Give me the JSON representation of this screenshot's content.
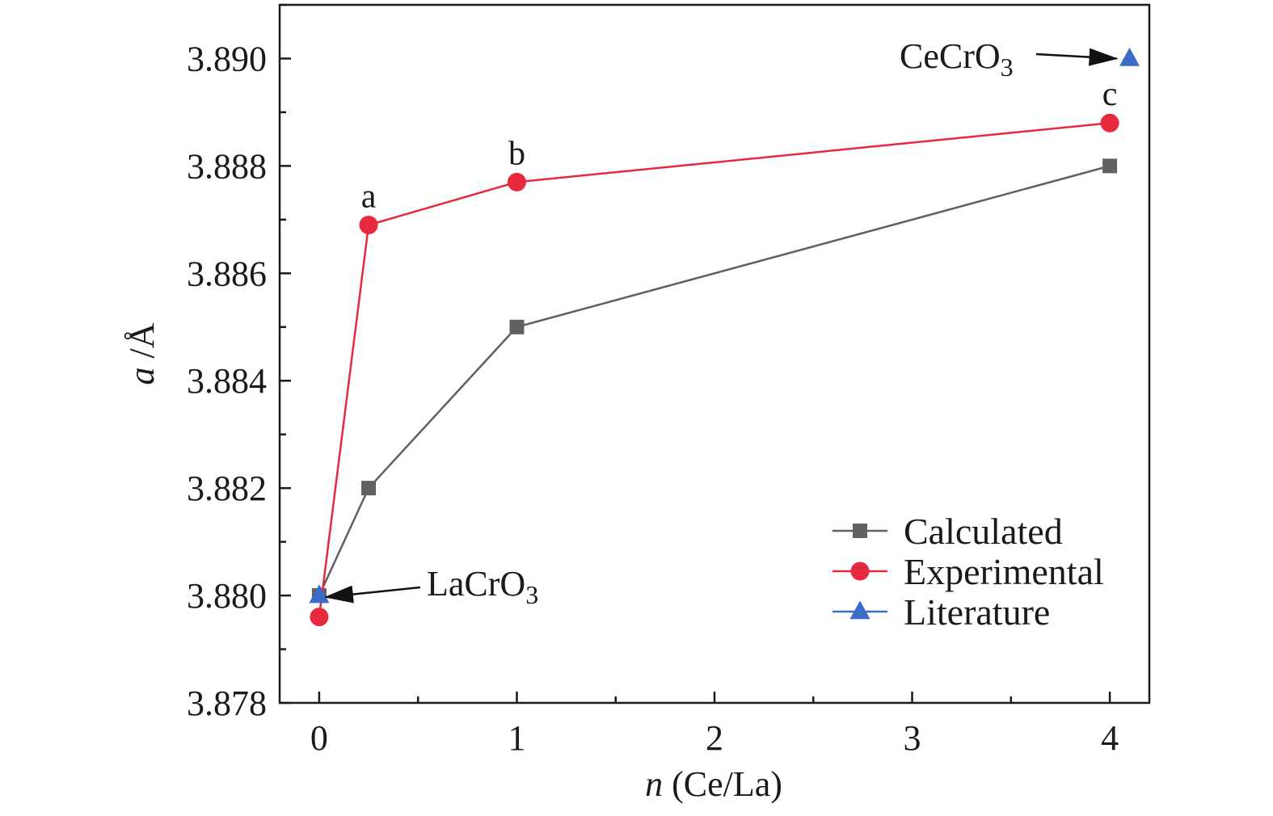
{
  "chart_data": {
    "type": "line",
    "xlabel_italic": "n",
    "xlabel_rest": " (Ce/La)",
    "ylabel_italic": "a",
    "ylabel_rest": " /Å",
    "xlim": [
      -0.2,
      4.2
    ],
    "ylim": [
      3.878,
      3.891
    ],
    "x_ticks": [
      0,
      1,
      2,
      3,
      4
    ],
    "x_tick_labels": [
      "0",
      "1",
      "2",
      "3",
      "4"
    ],
    "y_ticks": [
      3.878,
      3.88,
      3.882,
      3.884,
      3.886,
      3.888,
      3.89
    ],
    "y_tick_labels": [
      "3.878",
      "3.880",
      "3.882",
      "3.884",
      "3.886",
      "3.888",
      "3.890"
    ],
    "grid": false,
    "legend_position": "bottom-right",
    "series": [
      {
        "name": "Calculated",
        "marker": "square",
        "color": "#606060",
        "connected": true,
        "x": [
          0,
          0.25,
          1,
          4
        ],
        "y": [
          3.88,
          3.882,
          3.885,
          3.888
        ]
      },
      {
        "name": "Experimental",
        "marker": "circle",
        "color": "#e8283c",
        "connected": true,
        "x": [
          0,
          0.25,
          1,
          4
        ],
        "y": [
          3.8796,
          3.8869,
          3.8877,
          3.8888
        ]
      },
      {
        "name": "Literature",
        "marker": "triangle",
        "color": "#3a6cc8",
        "connected": false,
        "x": [
          0,
          4.1
        ],
        "y": [
          3.88,
          3.89
        ]
      }
    ],
    "point_labels": [
      {
        "text": "a",
        "x": 0.25,
        "y": 3.8869
      },
      {
        "text": "b",
        "x": 1,
        "y": 3.8877
      },
      {
        "text": "c",
        "x": 4,
        "y": 3.8888
      }
    ],
    "annotations": [
      {
        "base": "LaCrO",
        "sub": "3",
        "target_x": 0,
        "target_y": 3.88
      },
      {
        "base": "CeCrO",
        "sub": "3",
        "target_x": 4.1,
        "target_y": 3.89
      }
    ]
  }
}
